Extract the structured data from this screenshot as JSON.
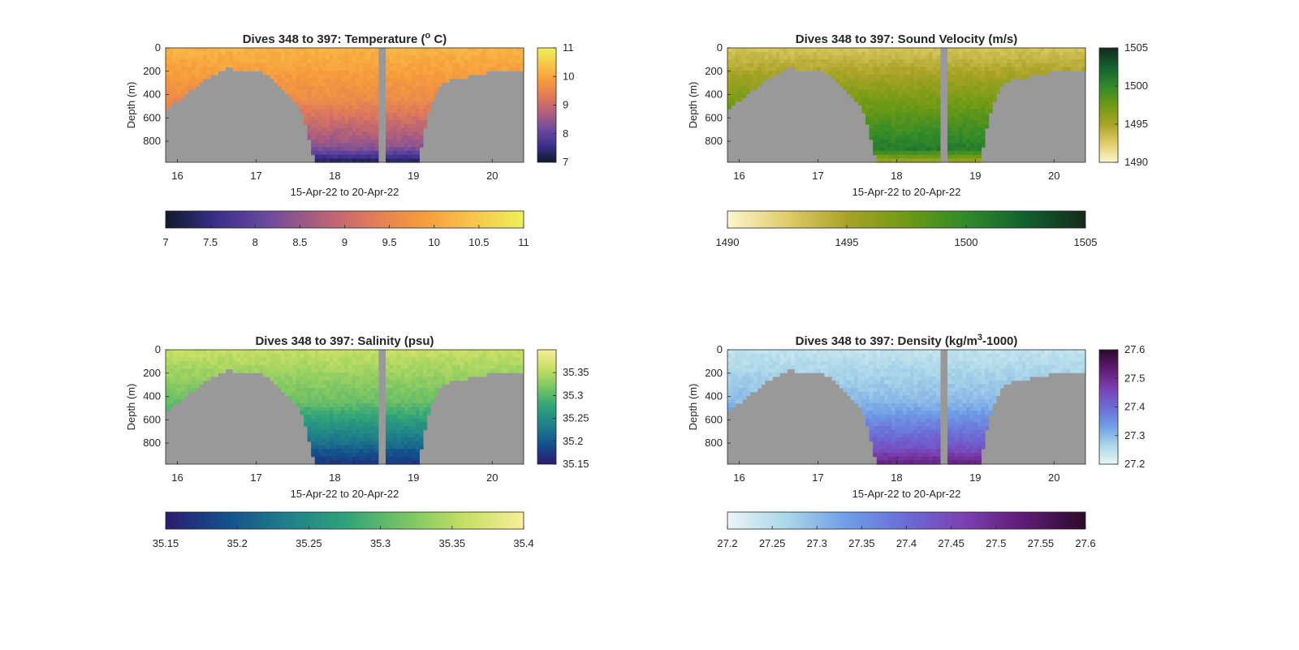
{
  "chart_data": [
    {
      "type": "heatmap",
      "variable": "temperature",
      "title": "Dives 348 to 397: Temperature (",
      "title_sup": "o",
      "title_end": " C)",
      "xlabel": "15-Apr-22 to 20-Apr-22",
      "ylabel": "Depth (m)",
      "xlim": [
        15.85,
        20.4
      ],
      "ylim": [
        0,
        980
      ],
      "xticks": [
        "16",
        "17",
        "18",
        "19",
        "20"
      ],
      "yticks": [
        "0",
        "200",
        "400",
        "600",
        "800"
      ],
      "colormap": [
        "#0f1a2e",
        "#3a2f8c",
        "#6d4aa0",
        "#b05f7c",
        "#e07a5a",
        "#f79a3c",
        "#f7c64a",
        "#eef05a"
      ],
      "clim": [
        7,
        11
      ],
      "side_colorbar_ticks": [
        "7",
        "8",
        "9",
        "10",
        "11"
      ],
      "bottom_colorbar_ticks": [
        "7",
        "7.5",
        "8",
        "8.5",
        "9",
        "9.5",
        "10",
        "10.5",
        "11"
      ],
      "profile": {
        "surface": 10.2,
        "mid": 9.6,
        "bottom": 8.3,
        "deep_min": 7.2
      }
    },
    {
      "type": "heatmap",
      "variable": "sound_velocity",
      "title": "Dives 348 to 397: Sound Velocity (m/s)",
      "xlabel": "15-Apr-22 to 20-Apr-22",
      "ylabel": "Depth (m)",
      "xlim": [
        15.85,
        20.4
      ],
      "ylim": [
        0,
        980
      ],
      "xticks": [
        "16",
        "17",
        "18",
        "19",
        "20"
      ],
      "yticks": [
        "0",
        "200",
        "400",
        "600",
        "800"
      ],
      "colormap": [
        "#fbf6cc",
        "#e0cc6a",
        "#a9a326",
        "#6e9a14",
        "#2f8a2a",
        "#12602e",
        "#142a1a"
      ],
      "clim": [
        1490,
        1505
      ],
      "side_colorbar_ticks": [
        "1490",
        "1495",
        "1500",
        "1505"
      ],
      "bottom_colorbar_ticks": [
        "1490",
        "1495",
        "1500",
        "1505"
      ],
      "profile": {
        "surface": 1493,
        "mid": 1497,
        "bottom": 1501,
        "deep_min": 1495
      }
    },
    {
      "type": "heatmap",
      "variable": "salinity",
      "title": "Dives 348 to 397: Salinity (psu)",
      "xlabel": "15-Apr-22 to 20-Apr-22",
      "ylabel": "Depth (m)",
      "xlim": [
        15.85,
        20.4
      ],
      "ylim": [
        0,
        980
      ],
      "xticks": [
        "16",
        "17",
        "18",
        "19",
        "20"
      ],
      "yticks": [
        "0",
        "200",
        "400",
        "600",
        "800"
      ],
      "colormap": [
        "#2a1c6e",
        "#134f8c",
        "#1f7e8a",
        "#2ea27a",
        "#76c463",
        "#c5df63",
        "#f8ee9a"
      ],
      "clim": [
        35.15,
        35.4
      ],
      "side_colorbar_ticks": [
        "35.15",
        "35.2",
        "35.25",
        "35.3",
        "35.35"
      ],
      "bottom_colorbar_ticks": [
        "35.15",
        "35.2",
        "35.25",
        "35.3",
        "35.35",
        "35.4"
      ],
      "profile": {
        "surface": 35.36,
        "mid": 35.31,
        "bottom": 35.2,
        "deep_min": 35.17
      }
    },
    {
      "type": "heatmap",
      "variable": "density",
      "title": "Dives 348 to 397: Density (kg/m",
      "title_sup": "3",
      "title_end": "-1000)",
      "xlabel": "15-Apr-22 to 20-Apr-22",
      "ylabel": "Depth (m)",
      "xlim": [
        15.85,
        20.4
      ],
      "ylim": [
        0,
        980
      ],
      "xticks": [
        "16",
        "17",
        "18",
        "19",
        "20"
      ],
      "yticks": [
        "0",
        "200",
        "400",
        "600",
        "800"
      ],
      "colormap": [
        "#eaf5f5",
        "#a9d6e8",
        "#6f9ee6",
        "#6c6bd6",
        "#7b3fb0",
        "#5e1b72",
        "#2a0a2a"
      ],
      "clim": [
        27.2,
        27.6
      ],
      "side_colorbar_ticks": [
        "27.2",
        "27.3",
        "27.4",
        "27.5",
        "27.6"
      ],
      "bottom_colorbar_ticks": [
        "27.2",
        "27.25",
        "27.3",
        "27.35",
        "27.4",
        "27.45",
        "27.5",
        "27.55",
        "27.6"
      ],
      "profile": {
        "surface": 27.24,
        "mid": 27.3,
        "bottom": 27.45,
        "deep_min": 27.52
      }
    }
  ],
  "mask_color": "#999999",
  "seabed_depth": [
    [
      15.85,
      520
    ],
    [
      15.95,
      470
    ],
    [
      16.05,
      430
    ],
    [
      16.15,
      380
    ],
    [
      16.25,
      320
    ],
    [
      16.35,
      270
    ],
    [
      16.45,
      230
    ],
    [
      16.55,
      190
    ],
    [
      16.65,
      175
    ],
    [
      16.75,
      185
    ],
    [
      16.85,
      200
    ],
    [
      16.95,
      200
    ],
    [
      17.05,
      205
    ],
    [
      17.15,
      240
    ],
    [
      17.25,
      300
    ],
    [
      17.35,
      360
    ],
    [
      17.45,
      420
    ],
    [
      17.55,
      500
    ],
    [
      17.65,
      700
    ],
    [
      17.75,
      999
    ],
    [
      18.55,
      999
    ],
    [
      18.65,
      999
    ],
    [
      19.05,
      999
    ],
    [
      19.15,
      650
    ],
    [
      19.25,
      420
    ],
    [
      19.35,
      310
    ],
    [
      19.45,
      280
    ],
    [
      19.55,
      265
    ],
    [
      19.65,
      250
    ],
    [
      19.75,
      240
    ],
    [
      19.85,
      225
    ],
    [
      19.95,
      210
    ],
    [
      20.05,
      200
    ],
    [
      20.15,
      195
    ],
    [
      20.4,
      195
    ]
  ],
  "data_gap": [
    18.56,
    18.63
  ]
}
